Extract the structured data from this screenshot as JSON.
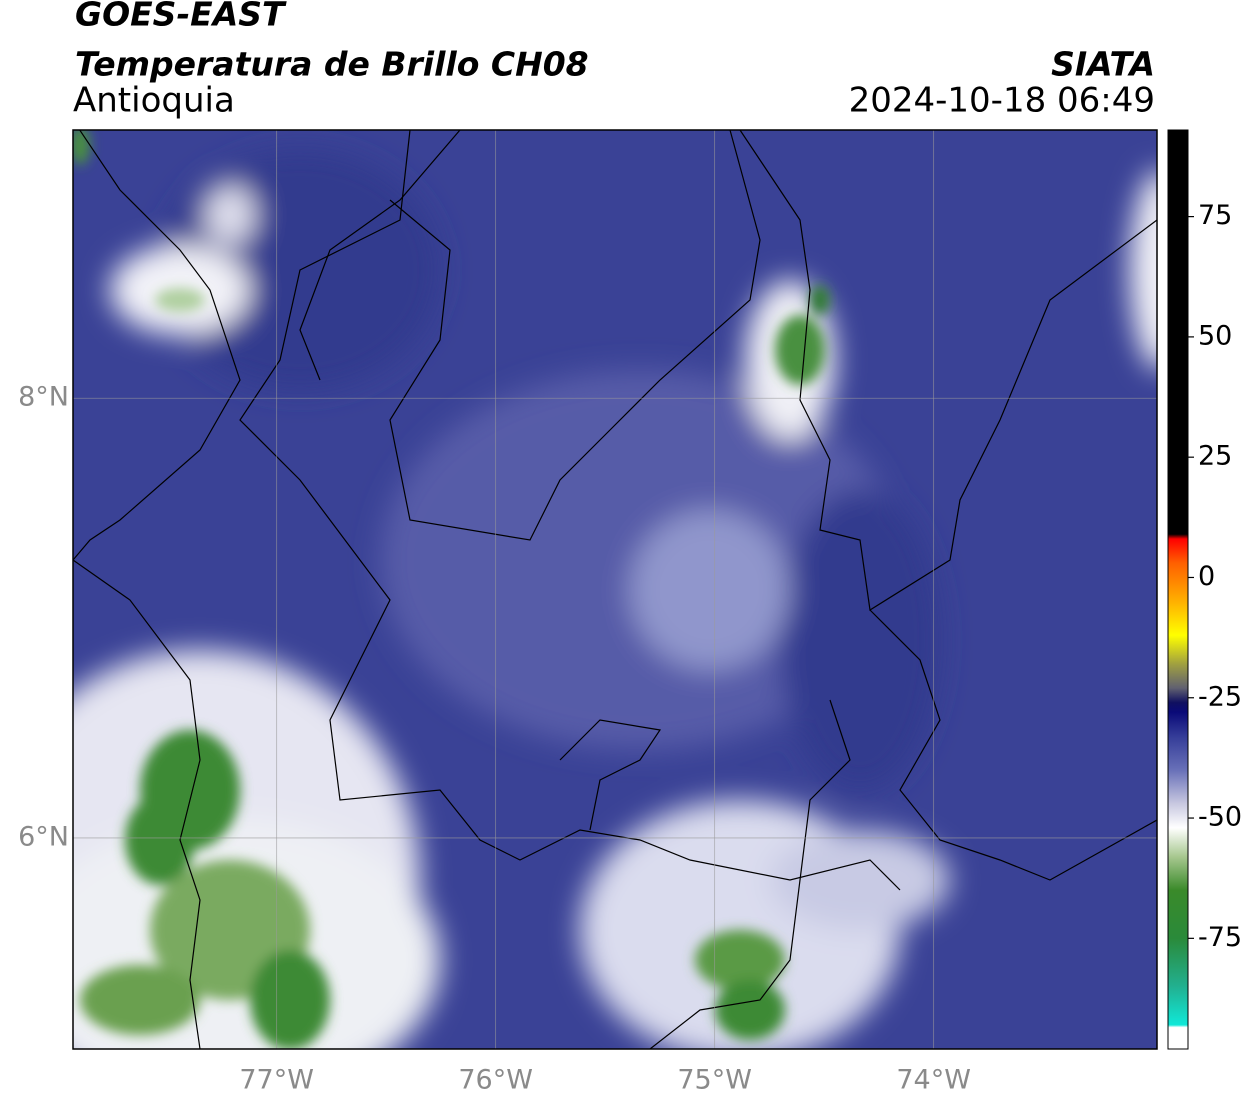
{
  "header": {
    "title": "GOES-EAST",
    "subtitle": "Temperatura de Brillo CH08",
    "source": "SIATA",
    "region": "Antioquia",
    "datetime": "2024-10-18 06:49"
  },
  "map": {
    "xlim": [
      -77.93,
      -72.98
    ],
    "ylim": [
      5.04,
      9.22
    ],
    "xticks": [
      {
        "value": -77,
        "label": "77°W"
      },
      {
        "value": -76,
        "label": "76°W"
      },
      {
        "value": -75,
        "label": "75°W"
      },
      {
        "value": -74,
        "label": "74°W"
      }
    ],
    "yticks": [
      {
        "value": 6,
        "label": "6°N"
      },
      {
        "value": 8,
        "label": "8°N"
      }
    ],
    "grid": true
  },
  "colorbar": {
    "lim": [
      -98,
      93
    ],
    "ticks": [
      -75,
      -50,
      -25,
      0,
      25,
      50,
      75
    ],
    "stops": [
      {
        "value": -98,
        "color": "#ffffff"
      },
      {
        "value": -93.5,
        "color": "#ffffff"
      },
      {
        "value": -93,
        "color": "#10e8d8"
      },
      {
        "value": -85,
        "color": "#22b090"
      },
      {
        "value": -75,
        "color": "#2a8a3a"
      },
      {
        "value": -65,
        "color": "#3a8a2a"
      },
      {
        "value": -58,
        "color": "#a8c890"
      },
      {
        "value": -52,
        "color": "#ffffff"
      },
      {
        "value": -47,
        "color": "#c8c8e0"
      },
      {
        "value": -40,
        "color": "#6870b8"
      },
      {
        "value": -33,
        "color": "#343c98"
      },
      {
        "value": -28,
        "color": "#0a0a78"
      },
      {
        "value": -26,
        "color": "#101060"
      },
      {
        "value": -23,
        "color": "#606070"
      },
      {
        "value": -18,
        "color": "#a0a040"
      },
      {
        "value": -12,
        "color": "#ffff00"
      },
      {
        "value": -5,
        "color": "#ffb000"
      },
      {
        "value": 3,
        "color": "#ff6000"
      },
      {
        "value": 8,
        "color": "#ff0000"
      },
      {
        "value": 9,
        "color": "#000000"
      },
      {
        "value": 93,
        "color": "#000000"
      }
    ]
  }
}
